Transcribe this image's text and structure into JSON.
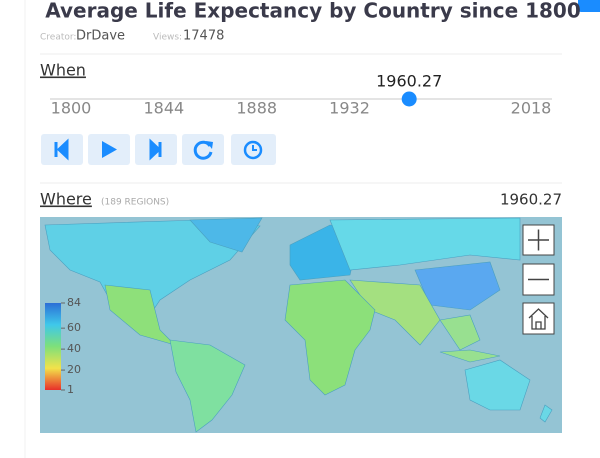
{
  "header": {
    "title": "Average Life Expectancy by Country since 1800",
    "creator_label": "Creator:",
    "creator": "DrDave",
    "views_label": "Views:",
    "views": 17478
  },
  "when": {
    "heading": "When",
    "slider": {
      "value": 1960.27,
      "range": [
        1800,
        2018
      ],
      "ticks": [
        1800,
        1844,
        1888,
        1932,
        2018
      ]
    }
  },
  "where": {
    "heading": "Where",
    "regions_note": "(189 REGIONS)"
  },
  "legend": {
    "range": [
      1,
      84
    ],
    "ticks": [
      84,
      60,
      40,
      20,
      1
    ]
  }
}
